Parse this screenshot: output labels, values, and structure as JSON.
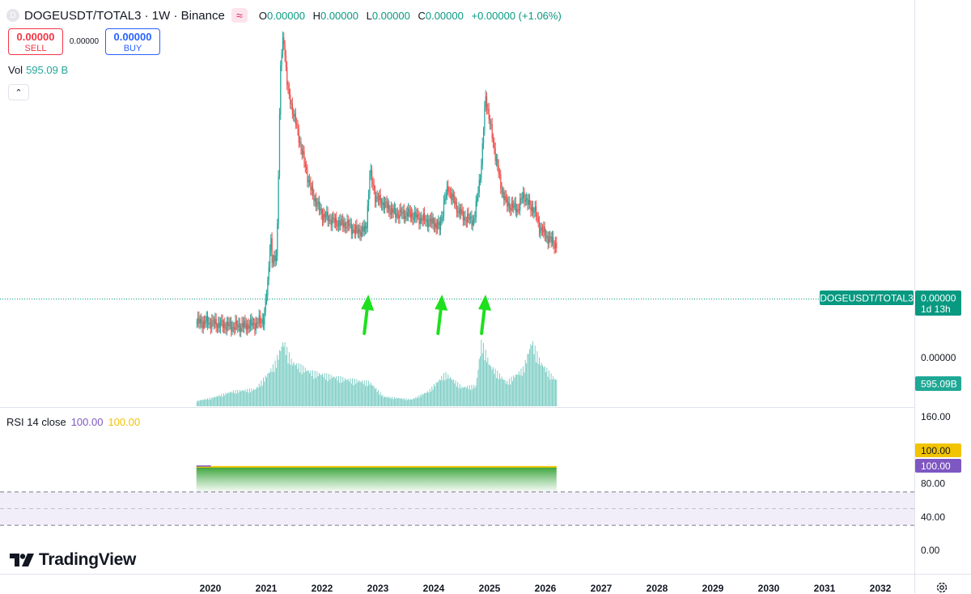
{
  "header": {
    "symbol_icon": "D",
    "title": "DOGEUSDT/TOTAL3 · 1W · Binance",
    "compare_icon": "compare-icon",
    "ohlc": [
      {
        "key": "O",
        "value": "0.00000"
      },
      {
        "key": "H",
        "value": "0.00000"
      },
      {
        "key": "L",
        "value": "0.00000"
      },
      {
        "key": "C",
        "value": "0.00000"
      }
    ],
    "change": "+0.00000 (+1.06%)"
  },
  "trade": {
    "sell_price": "0.00000",
    "sell_label": "SELL",
    "spread": "0.00000",
    "buy_price": "0.00000",
    "buy_label": "BUY"
  },
  "volume_legend": {
    "label": "Vol",
    "value": "595.09 B"
  },
  "collapse_icon": "chevron-up-icon",
  "rsi_legend": {
    "label": "RSI 14 close",
    "value1": "100.00",
    "value2": "100.00"
  },
  "branding": {
    "text": "TradingView"
  },
  "colors": {
    "up": "#26a69a",
    "down": "#ef5350",
    "volume": "#7dcdc5",
    "arrow": "#1ee01e",
    "rsi_line": "#7e57c2",
    "rsi_ma": "#f2c400",
    "price_badge": "#089981",
    "rsi_band": "#7e57c2"
  },
  "chart_data": [
    {
      "type": "candlestick",
      "symbol": "DOGEUSDT/TOTAL3",
      "interval": "1W",
      "exchange": "Binance",
      "x_axis": {
        "ticks": [
          "2020",
          "2021",
          "2022",
          "2023",
          "2024",
          "2025",
          "2026",
          "2027",
          "2028",
          "2029",
          "2030",
          "2031",
          "2032"
        ]
      },
      "price_axis": {
        "ticks": [
          "0.00000"
        ]
      },
      "last_price_badge": {
        "label": "DOGEUSDT/TOTAL3",
        "value": "0.00000",
        "countdown": "1d 13h"
      },
      "volume_badge": "595.09B",
      "price_path": [
        {
          "t": 2019.75,
          "v": 0.8
        },
        {
          "t": 2019.95,
          "v": 0.8
        },
        {
          "t": 2020.1,
          "v": 0.75
        },
        {
          "t": 2020.4,
          "v": 0.67
        },
        {
          "t": 2020.6,
          "v": 0.7
        },
        {
          "t": 2020.8,
          "v": 0.75
        },
        {
          "t": 2020.95,
          "v": 0.9
        },
        {
          "t": 2021.02,
          "v": 2.0
        },
        {
          "t": 2021.07,
          "v": 3.6
        },
        {
          "t": 2021.1,
          "v": 2.6
        },
        {
          "t": 2021.18,
          "v": 2.9
        },
        {
          "t": 2021.25,
          "v": 8.8
        },
        {
          "t": 2021.3,
          "v": 9.8
        },
        {
          "t": 2021.38,
          "v": 8.0
        },
        {
          "t": 2021.5,
          "v": 7.2
        },
        {
          "t": 2021.6,
          "v": 6.4
        },
        {
          "t": 2021.7,
          "v": 5.6
        },
        {
          "t": 2021.8,
          "v": 4.9
        },
        {
          "t": 2021.9,
          "v": 4.5
        },
        {
          "t": 2022.0,
          "v": 4.15
        },
        {
          "t": 2022.2,
          "v": 3.95
        },
        {
          "t": 2022.45,
          "v": 3.85
        },
        {
          "t": 2022.6,
          "v": 3.65
        },
        {
          "t": 2022.78,
          "v": 3.7
        },
        {
          "t": 2022.85,
          "v": 5.5
        },
        {
          "t": 2022.95,
          "v": 4.7
        },
        {
          "t": 2023.1,
          "v": 4.5
        },
        {
          "t": 2023.3,
          "v": 4.2
        },
        {
          "t": 2023.55,
          "v": 4.2
        },
        {
          "t": 2023.75,
          "v": 4.05
        },
        {
          "t": 2024.0,
          "v": 3.9
        },
        {
          "t": 2024.1,
          "v": 3.75
        },
        {
          "t": 2024.18,
          "v": 4.6
        },
        {
          "t": 2024.25,
          "v": 5.0
        },
        {
          "t": 2024.4,
          "v": 4.4
        },
        {
          "t": 2024.55,
          "v": 4.05
        },
        {
          "t": 2024.72,
          "v": 4.0
        },
        {
          "t": 2024.85,
          "v": 5.8
        },
        {
          "t": 2024.92,
          "v": 7.9
        },
        {
          "t": 2025.0,
          "v": 7.0
        },
        {
          "t": 2025.1,
          "v": 6.0
        },
        {
          "t": 2025.2,
          "v": 5.0
        },
        {
          "t": 2025.3,
          "v": 4.5
        },
        {
          "t": 2025.5,
          "v": 4.35
        },
        {
          "t": 2025.6,
          "v": 4.8
        },
        {
          "t": 2025.7,
          "v": 4.45
        },
        {
          "t": 2025.8,
          "v": 4.3
        },
        {
          "t": 2025.88,
          "v": 3.8
        },
        {
          "t": 2026.0,
          "v": 3.5
        },
        {
          "t": 2026.1,
          "v": 3.35
        },
        {
          "t": 2026.2,
          "v": 3.2
        }
      ],
      "volume_path": [
        {
          "t": 2019.75,
          "v": 0.08
        },
        {
          "t": 2020.0,
          "v": 0.12
        },
        {
          "t": 2020.4,
          "v": 0.22
        },
        {
          "t": 2020.8,
          "v": 0.25
        },
        {
          "t": 2021.0,
          "v": 0.45
        },
        {
          "t": 2021.15,
          "v": 0.62
        },
        {
          "t": 2021.3,
          "v": 0.95
        },
        {
          "t": 2021.45,
          "v": 0.65
        },
        {
          "t": 2021.8,
          "v": 0.5
        },
        {
          "t": 2022.4,
          "v": 0.4
        },
        {
          "t": 2022.85,
          "v": 0.35
        },
        {
          "t": 2023.1,
          "v": 0.14
        },
        {
          "t": 2023.6,
          "v": 0.1
        },
        {
          "t": 2023.9,
          "v": 0.22
        },
        {
          "t": 2024.2,
          "v": 0.48
        },
        {
          "t": 2024.5,
          "v": 0.28
        },
        {
          "t": 2024.75,
          "v": 0.3
        },
        {
          "t": 2024.85,
          "v": 0.95
        },
        {
          "t": 2025.0,
          "v": 0.6
        },
        {
          "t": 2025.3,
          "v": 0.35
        },
        {
          "t": 2025.6,
          "v": 0.55
        },
        {
          "t": 2025.75,
          "v": 0.95
        },
        {
          "t": 2025.9,
          "v": 0.65
        },
        {
          "t": 2026.1,
          "v": 0.45
        },
        {
          "t": 2026.2,
          "v": 0.38
        }
      ],
      "arrows": [
        {
          "name": "arrow-2022-low",
          "t": 2022.8
        },
        {
          "name": "arrow-2024-low",
          "t": 2024.12
        },
        {
          "name": "arrow-2024-breakout",
          "t": 2024.9
        }
      ]
    },
    {
      "type": "area",
      "name": "RSI 14 close",
      "y_axis": {
        "ticks": [
          "160.00",
          "80.00",
          "40.00",
          "0.00"
        ]
      },
      "ylim": [
        0,
        160
      ],
      "series": [
        {
          "name": "RSI",
          "value": 100.0,
          "from": 2019.75,
          "to": 2026.2
        }
      ],
      "value_badges": [
        "100.00",
        "100.00"
      ],
      "band": {
        "lower": 30,
        "middle": 50,
        "upper": 70
      }
    }
  ]
}
